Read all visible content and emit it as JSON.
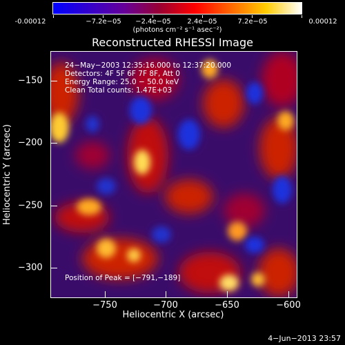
{
  "title": "Reconstructed RHESSI Image",
  "colorbar": {
    "tick_labels": [
      "-0.00012",
      "−7.2e−05",
      "−2.4e−05",
      "2.4e−05",
      "7.2e−05",
      "0.00012"
    ],
    "unit_label": "(photons cm⁻² s⁻¹ asec⁻²)",
    "colors": [
      "#0000ff",
      "#3300cc",
      "#660099",
      "#990033",
      "#ff0000",
      "#ff6600",
      "#ffcc00",
      "#ffffff"
    ]
  },
  "annotations": {
    "time": "24−May−2003 12:35:16.000 to 12:37:20.000",
    "detectors": "Detectors: 4F 5F 6F 7F 8F, Att 0",
    "energy": "Energy Range: 25.0 − 50.0 keV",
    "clean": "Clean     Total counts: 1.47E+03",
    "peak": "Position of Peak = [−791,−189]"
  },
  "x_axis": {
    "label": "Heliocentric X (arcsec)",
    "ticks": [
      "−750",
      "−700",
      "−650",
      "−600"
    ]
  },
  "y_axis": {
    "label": "Heliocentric Y (arcsec)",
    "ticks": [
      "−150",
      "−200",
      "−250",
      "−300"
    ]
  },
  "footer": {
    "date": "4−Jun−2013 23:57"
  },
  "chart_data": {
    "type": "heatmap",
    "title": "Reconstructed RHESSI Image",
    "xlabel": "Heliocentric X (arcsec)",
    "ylabel": "Heliocentric Y (arcsec)",
    "xlim": [
      -795,
      -598
    ],
    "ylim": [
      -317,
      -130
    ],
    "x_ticks": [
      -750,
      -700,
      -650,
      -600
    ],
    "y_ticks": [
      -150,
      -200,
      -250,
      -300
    ],
    "colorbar_range": [
      -0.00012,
      0.00012
    ],
    "peak_position": [
      -791,
      -189
    ]
  }
}
